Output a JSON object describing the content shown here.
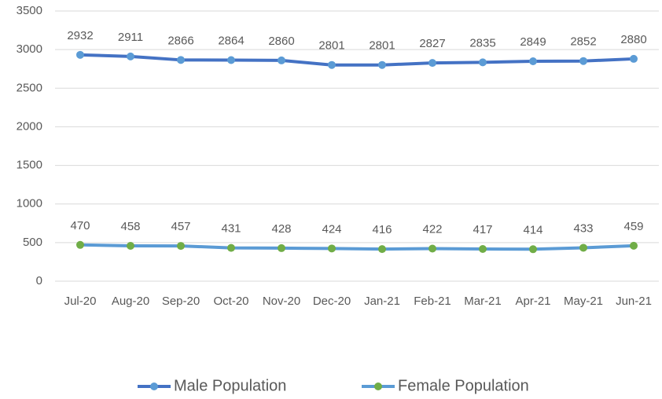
{
  "chart_data": {
    "type": "line",
    "categories": [
      "Jul-20",
      "Aug-20",
      "Sep-20",
      "Oct-20",
      "Nov-20",
      "Dec-20",
      "Jan-21",
      "Feb-21",
      "Mar-21",
      "Apr-21",
      "May-21",
      "Jun-21"
    ],
    "series": [
      {
        "name": "Male Population",
        "color": "#4472c4",
        "marker_color": "#5b9bd5",
        "values": [
          2932,
          2911,
          2866,
          2864,
          2860,
          2801,
          2801,
          2827,
          2835,
          2849,
          2852,
          2880
        ]
      },
      {
        "name": "Female Population",
        "color": "#5b9bd5",
        "marker_color": "#70ad47",
        "values": [
          470,
          458,
          457,
          431,
          428,
          424,
          416,
          422,
          417,
          414,
          433,
          459
        ]
      }
    ],
    "ylim": [
      0,
      3500
    ],
    "yticks": [
      0,
      500,
      1000,
      1500,
      2000,
      2500,
      3000,
      3500
    ],
    "grid": true,
    "legend": "bottom"
  }
}
